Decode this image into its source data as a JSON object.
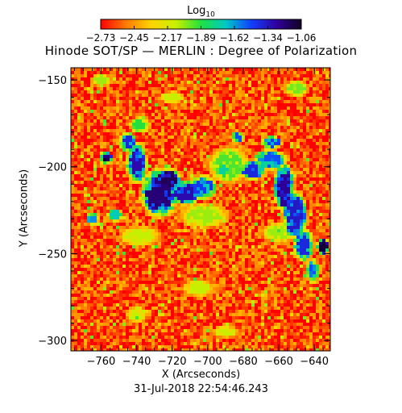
{
  "chart_data": {
    "type": "heatmap",
    "title": "Hinode SOT/SP — MERLIN : Degree of Polarization",
    "xlabel": "X (Arcseconds)",
    "ylabel": "Y (Arcseconds)",
    "footer": "31-Jul-2018 22:54:46.243",
    "colorbar": {
      "title": "Log",
      "title_sub": "10",
      "ticks": [
        "-2.73",
        "-2.45",
        "-2.17",
        "-1.89",
        "-1.62",
        "-1.34",
        "-1.06"
      ],
      "range": [
        -2.73,
        -1.06
      ],
      "colors": [
        "#ff0000",
        "#ff7a00",
        "#ffd200",
        "#c8f000",
        "#20e040",
        "#00c8c8",
        "#1040ff",
        "#3000a0",
        "#100020"
      ]
    },
    "xlim": [
      -777,
      -631
    ],
    "ylim": [
      -306,
      -143
    ],
    "x_ticks": [
      -760,
      -740,
      -720,
      -700,
      -680,
      -660,
      -640
    ],
    "x_tick_labels": [
      "−760",
      "−740",
      "−720",
      "−700",
      "−680",
      "−660",
      "−640"
    ],
    "y_ticks": [
      -150,
      -200,
      -250,
      -300
    ],
    "y_tick_labels": [
      "−150",
      "−200",
      "−250",
      "−300"
    ],
    "background_log10": -2.6,
    "features": [
      {
        "x": -727,
        "y": -215,
        "rx": 9,
        "ry": 12,
        "value": -1.2
      },
      {
        "x": -740,
        "y": -198,
        "rx": 5,
        "ry": 10,
        "value": -1.3
      },
      {
        "x": -745,
        "y": -186,
        "rx": 4,
        "ry": 5,
        "value": -1.4
      },
      {
        "x": -722,
        "y": -208,
        "rx": 6,
        "ry": 6,
        "value": -1.15
      },
      {
        "x": -713,
        "y": -215,
        "rx": 8,
        "ry": 6,
        "value": -1.3
      },
      {
        "x": -703,
        "y": -212,
        "rx": 7,
        "ry": 6,
        "value": -1.45
      },
      {
        "x": -688,
        "y": -199,
        "rx": 10,
        "ry": 9,
        "value": -1.95
      },
      {
        "x": -691,
        "y": -202,
        "rx": 4,
        "ry": 4,
        "value": -1.75
      },
      {
        "x": -675,
        "y": -202,
        "rx": 6,
        "ry": 5,
        "value": -1.4
      },
      {
        "x": -665,
        "y": -196,
        "rx": 8,
        "ry": 5,
        "value": -1.5
      },
      {
        "x": -657,
        "y": -212,
        "rx": 5,
        "ry": 12,
        "value": -1.25
      },
      {
        "x": -651,
        "y": -228,
        "rx": 6,
        "ry": 12,
        "value": -1.35
      },
      {
        "x": -646,
        "y": -245,
        "rx": 5,
        "ry": 8,
        "value": -1.4
      },
      {
        "x": -635,
        "y": -246,
        "rx": 3,
        "ry": 4,
        "value": -1.1
      },
      {
        "x": -641,
        "y": -260,
        "rx": 3,
        "ry": 6,
        "value": -1.5
      },
      {
        "x": -757,
        "y": -195,
        "rx": 3,
        "ry": 3,
        "value": -1.1
      },
      {
        "x": -765,
        "y": -230,
        "rx": 3,
        "ry": 3,
        "value": -1.6
      },
      {
        "x": -752,
        "y": -228,
        "rx": 4,
        "ry": 3,
        "value": -1.7
      },
      {
        "x": -683,
        "y": -183,
        "rx": 3,
        "ry": 3,
        "value": -1.5
      },
      {
        "x": -664,
        "y": -186,
        "rx": 5,
        "ry": 3,
        "value": -1.45
      },
      {
        "x": -738,
        "y": -176,
        "rx": 5,
        "ry": 4,
        "value": -1.9
      },
      {
        "x": -702,
        "y": -228,
        "rx": 12,
        "ry": 6,
        "value": -2.05
      },
      {
        "x": -738,
        "y": -240,
        "rx": 10,
        "ry": 5,
        "value": -2.1
      },
      {
        "x": -660,
        "y": -238,
        "rx": 8,
        "ry": 5,
        "value": -2.05
      },
      {
        "x": -760,
        "y": -150,
        "rx": 5,
        "ry": 3,
        "value": -2.05
      },
      {
        "x": -720,
        "y": -160,
        "rx": 6,
        "ry": 3,
        "value": -2.1
      },
      {
        "x": -650,
        "y": -155,
        "rx": 6,
        "ry": 4,
        "value": -2.0
      },
      {
        "x": -705,
        "y": -270,
        "rx": 8,
        "ry": 4,
        "value": -2.1
      },
      {
        "x": -740,
        "y": -285,
        "rx": 5,
        "ry": 4,
        "value": -2.1
      },
      {
        "x": -690,
        "y": -295,
        "rx": 6,
        "ry": 3,
        "value": -2.1
      }
    ]
  }
}
